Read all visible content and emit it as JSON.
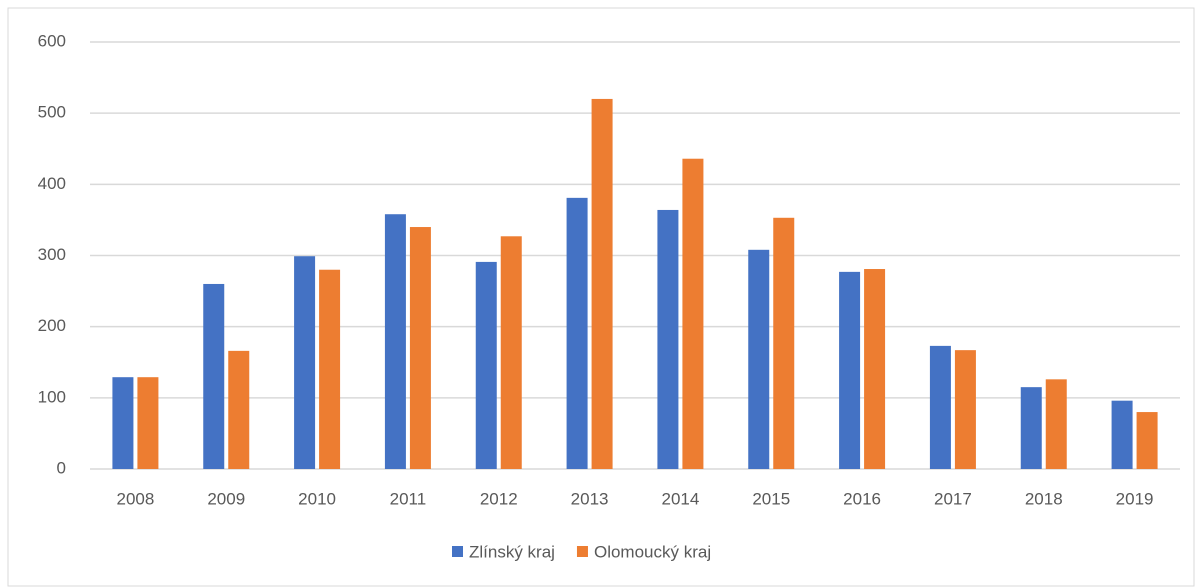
{
  "chart_data": {
    "type": "bar",
    "categories": [
      "2008",
      "2009",
      "2010",
      "2011",
      "2012",
      "2013",
      "2014",
      "2015",
      "2016",
      "2017",
      "2018",
      "2019"
    ],
    "series": [
      {
        "name": "Zlínský kraj",
        "color": "#4472c4",
        "values": [
          129,
          260,
          299,
          358,
          291,
          381,
          364,
          308,
          277,
          173,
          115,
          96
        ]
      },
      {
        "name": "Olomoucký kraj",
        "color": "#ed7d31",
        "values": [
          129,
          166,
          280,
          340,
          327,
          520,
          436,
          353,
          281,
          167,
          126,
          80
        ]
      }
    ],
    "ylim": [
      0,
      600
    ],
    "yticks": [
      0,
      100,
      200,
      300,
      400,
      500,
      600
    ],
    "grid": true,
    "legend": "bottom"
  }
}
